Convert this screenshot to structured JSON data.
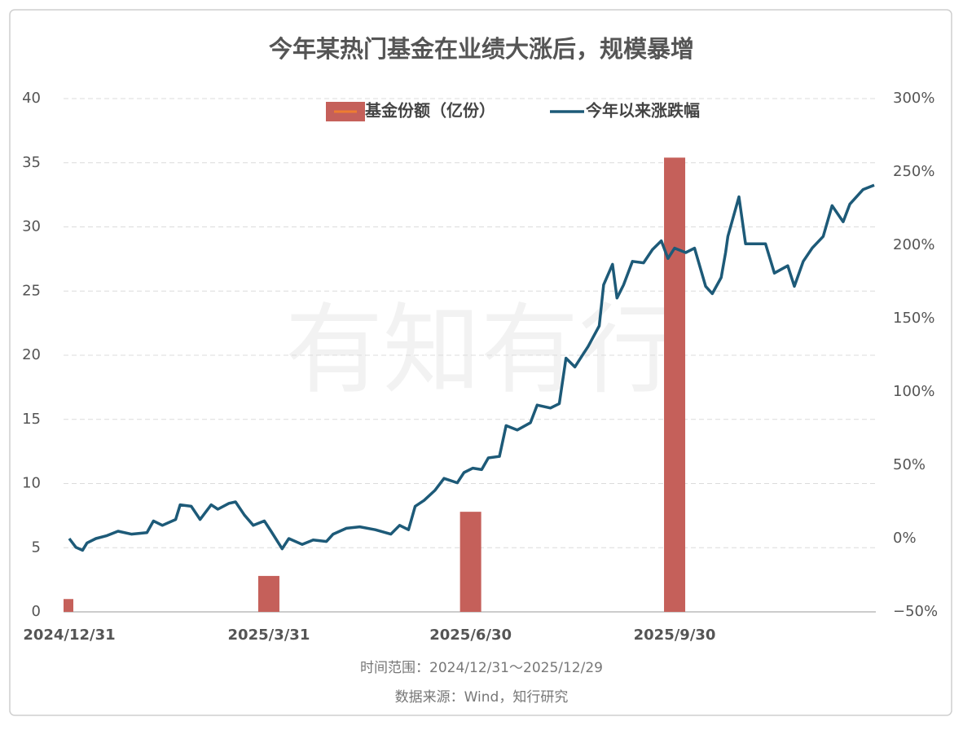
{
  "chart_data": {
    "type": "combo",
    "title": "今年某热门基金在业绩大涨后，规模暴增",
    "watermark": "有知有行",
    "notes": [
      "时间范围：2024/12/31～2025/12/29",
      "数据来源：Wind，知行研究"
    ],
    "legend": "top",
    "grid": true,
    "xlim": [
      "2024/12/31",
      "2025/12/29"
    ],
    "xticks": [
      "2024/12/31",
      "2025/3/31",
      "2025/6/30",
      "2025/9/30"
    ],
    "ylim": [
      0,
      40
    ],
    "yticks": [
      0,
      5,
      10,
      15,
      20,
      25,
      30,
      35,
      40
    ],
    "y2lim": [
      -50,
      300
    ],
    "y2ticks": [
      {
        "value": -50,
        "label": "−50%"
      },
      {
        "value": 0,
        "label": "0%"
      },
      {
        "value": 50,
        "label": "50%"
      },
      {
        "value": 100,
        "label": "100%"
      },
      {
        "value": 150,
        "label": "150%"
      },
      {
        "value": 200,
        "label": "200%"
      },
      {
        "value": 250,
        "label": "250%"
      },
      {
        "value": 300,
        "label": "300%"
      }
    ],
    "series": [
      {
        "name": "基金份额（亿份）",
        "type": "bar",
        "color": "#c5605a",
        "x": [
          "2024/12/31",
          "2025/3/31",
          "2025/6/30",
          "2025/9/30"
        ],
        "values": [
          1.0,
          2.8,
          7.8,
          35.4
        ]
      },
      {
        "name": "今年以来涨跌幅",
        "type": "line",
        "axis": "y2",
        "color": "#1d5a78",
        "x": [
          "2024/12/31",
          "2025/1/3",
          "2025/1/6",
          "2025/1/8",
          "2025/1/12",
          "2025/1/17",
          "2025/1/22",
          "2025/1/28",
          "2025/2/4",
          "2025/2/7",
          "2025/2/11",
          "2025/2/17",
          "2025/2/19",
          "2025/2/24",
          "2025/2/28",
          "2025/3/5",
          "2025/3/8",
          "2025/3/13",
          "2025/3/16",
          "2025/3/20",
          "2025/3/24",
          "2025/3/29",
          "2025/4/1",
          "2025/4/6",
          "2025/4/9",
          "2025/4/15",
          "2025/4/20",
          "2025/4/26",
          "2025/4/29",
          "2025/5/5",
          "2025/5/11",
          "2025/5/18",
          "2025/5/25",
          "2025/5/29",
          "2025/6/2",
          "2025/6/5",
          "2025/6/9",
          "2025/6/14",
          "2025/6/18",
          "2025/6/24",
          "2025/6/27",
          "2025/7/1",
          "2025/7/5",
          "2025/7/8",
          "2025/7/13",
          "2025/7/16",
          "2025/7/21",
          "2025/7/27",
          "2025/7/30",
          "2025/8/5",
          "2025/8/9",
          "2025/8/12",
          "2025/8/16",
          "2025/8/19",
          "2025/8/22",
          "2025/8/27",
          "2025/8/29",
          "2025/9/2",
          "2025/9/4",
          "2025/9/7",
          "2025/9/11",
          "2025/9/16",
          "2025/9/20",
          "2025/9/24",
          "2025/9/27",
          "2025/9/30",
          "2025/10/5",
          "2025/10/9",
          "2025/10/14",
          "2025/10/17",
          "2025/10/21",
          "2025/10/23",
          "2025/10/24",
          "2025/10/29",
          "2025/11/1",
          "2025/11/7",
          "2025/11/10",
          "2025/11/14",
          "2025/11/20",
          "2025/11/23",
          "2025/11/27",
          "2025/12/1",
          "2025/12/6",
          "2025/12/10",
          "2025/12/15",
          "2025/12/18",
          "2025/12/24",
          "2025/12/29"
        ],
        "values": [
          0,
          -6,
          -8,
          -3,
          0,
          2,
          5,
          3,
          4,
          12,
          9,
          13,
          23,
          22,
          13,
          23,
          20,
          24,
          25,
          16,
          9,
          12,
          5,
          -7,
          0,
          -4,
          -1,
          -2,
          3,
          7,
          8,
          6,
          3,
          9,
          6,
          22,
          26,
          33,
          41,
          38,
          45,
          48,
          47,
          55,
          56,
          77,
          74,
          79,
          91,
          89,
          92,
          123,
          117,
          124,
          131,
          145,
          173,
          187,
          164,
          173,
          189,
          188,
          197,
          203,
          191,
          198,
          195,
          198,
          172,
          167,
          178,
          195,
          206,
          233,
          201,
          201,
          201,
          181,
          186,
          172,
          189,
          198,
          206,
          227,
          216,
          228,
          238,
          241
        ]
      }
    ]
  }
}
